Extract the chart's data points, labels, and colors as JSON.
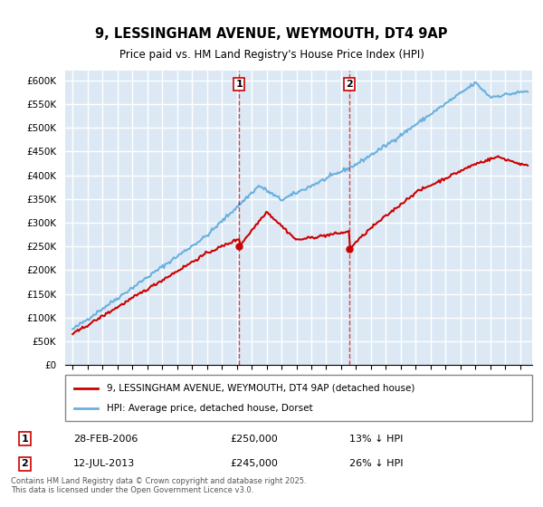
{
  "title": "9, LESSINGHAM AVENUE, WEYMOUTH, DT4 9AP",
  "subtitle": "Price paid vs. HM Land Registry's House Price Index (HPI)",
  "hpi_label": "HPI: Average price, detached house, Dorset",
  "property_label": "9, LESSINGHAM AVENUE, WEYMOUTH, DT4 9AP (detached house)",
  "footer": "Contains HM Land Registry data © Crown copyright and database right 2025.\nThis data is licensed under the Open Government Licence v3.0.",
  "ylim": [
    0,
    620000
  ],
  "yticks": [
    0,
    50000,
    100000,
    150000,
    200000,
    250000,
    300000,
    350000,
    400000,
    450000,
    500000,
    550000,
    600000
  ],
  "ytick_labels": [
    "£0",
    "£50K",
    "£100K",
    "£150K",
    "£200K",
    "£250K",
    "£300K",
    "£350K",
    "£400K",
    "£450K",
    "£500K",
    "£550K",
    "£600K"
  ],
  "sale1_date": "28-FEB-2006",
  "sale1_price": 250000,
  "sale1_label": "1",
  "sale1_pct": "13% ↓ HPI",
  "sale2_date": "12-JUL-2013",
  "sale2_label": "2",
  "sale2_price": 245000,
  "sale2_pct": "26% ↓ HPI",
  "hpi_color": "#6ab0de",
  "property_color": "#cc0000",
  "background_color": "#dce9f5",
  "plot_bg": "#dce9f5",
  "grid_color": "#ffffff",
  "sale_line_color": "#cc0000",
  "sale_marker_color": "#cc0000"
}
